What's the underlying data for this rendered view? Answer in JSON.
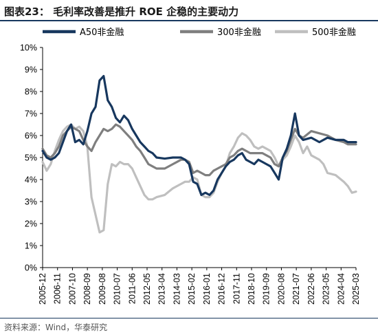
{
  "page": {
    "title": "图表23：  毛利率改善是推升 ROE 企稳的主要动力",
    "source": "资料来源：Wind，华泰研究"
  },
  "chart_data": {
    "type": "line",
    "title": "",
    "xlabel": "",
    "ylabel": "",
    "ylim": [
      0,
      10
    ],
    "y_tick_labels": [
      "0%",
      "1%",
      "2%",
      "3%",
      "4%",
      "5%",
      "6%",
      "7%",
      "8%",
      "9%",
      "10%"
    ],
    "x_tick_labels": [
      "2005-12",
      "2006-11",
      "2007-10",
      "2008-09",
      "2009-08",
      "2010-07",
      "2011-06",
      "2012-05",
      "2013-04",
      "2014-03",
      "2015-02",
      "2016-01",
      "2016-12",
      "2017-11",
      "2018-10",
      "2019-09",
      "2020-08",
      "2021-07",
      "2022-06",
      "2023-05",
      "2024-04",
      "2025-03"
    ],
    "x_axis_start": "2005-12",
    "x_axis_end": "2025-03",
    "grid": false,
    "legend_position": "top",
    "series": [
      {
        "name": "A50非金融",
        "color": "#17375e",
        "data": [
          [
            "2005-12",
            5.3
          ],
          [
            "2006-03",
            5.0
          ],
          [
            "2006-06",
            4.9
          ],
          [
            "2006-09",
            5.0
          ],
          [
            "2006-12",
            5.2
          ],
          [
            "2007-03",
            5.7
          ],
          [
            "2007-06",
            6.2
          ],
          [
            "2007-09",
            6.5
          ],
          [
            "2007-12",
            5.7
          ],
          [
            "2008-03",
            5.8
          ],
          [
            "2008-06",
            5.6
          ],
          [
            "2008-09",
            6.2
          ],
          [
            "2008-12",
            7.0
          ],
          [
            "2009-03",
            7.3
          ],
          [
            "2009-06",
            8.5
          ],
          [
            "2009-09",
            8.7
          ],
          [
            "2009-12",
            7.6
          ],
          [
            "2010-03",
            7.3
          ],
          [
            "2010-06",
            6.8
          ],
          [
            "2010-09",
            6.6
          ],
          [
            "2010-12",
            6.9
          ],
          [
            "2011-03",
            6.7
          ],
          [
            "2011-06",
            6.3
          ],
          [
            "2011-09",
            6.0
          ],
          [
            "2011-12",
            5.7
          ],
          [
            "2012-03",
            5.5
          ],
          [
            "2012-06",
            5.3
          ],
          [
            "2012-09",
            5.2
          ],
          [
            "2012-12",
            5.0
          ],
          [
            "2013-06",
            4.95
          ],
          [
            "2013-12",
            5.0
          ],
          [
            "2014-06",
            5.0
          ],
          [
            "2014-09",
            4.9
          ],
          [
            "2014-12",
            4.7
          ],
          [
            "2015-03",
            3.9
          ],
          [
            "2015-06",
            3.8
          ],
          [
            "2015-09",
            3.3
          ],
          [
            "2015-12",
            3.4
          ],
          [
            "2016-03",
            3.3
          ],
          [
            "2016-06",
            3.5
          ],
          [
            "2016-09",
            4.0
          ],
          [
            "2016-12",
            4.3
          ],
          [
            "2017-03",
            4.6
          ],
          [
            "2017-06",
            4.8
          ],
          [
            "2017-09",
            4.9
          ],
          [
            "2017-12",
            5.1
          ],
          [
            "2018-03",
            5.2
          ],
          [
            "2018-06",
            4.9
          ],
          [
            "2018-09",
            4.8
          ],
          [
            "2018-12",
            4.7
          ],
          [
            "2019-03",
            4.9
          ],
          [
            "2019-06",
            4.8
          ],
          [
            "2019-09",
            4.7
          ],
          [
            "2019-12",
            4.6
          ],
          [
            "2020-03",
            4.3
          ],
          [
            "2020-06",
            4.0
          ],
          [
            "2020-09",
            5.0
          ],
          [
            "2020-12",
            5.4
          ],
          [
            "2021-03",
            6.0
          ],
          [
            "2021-06",
            7.0
          ],
          [
            "2021-09",
            6.0
          ],
          [
            "2021-12",
            5.8
          ],
          [
            "2022-06",
            5.9
          ],
          [
            "2022-12",
            5.7
          ],
          [
            "2023-06",
            5.9
          ],
          [
            "2023-12",
            5.8
          ],
          [
            "2024-06",
            5.8
          ],
          [
            "2024-09",
            5.7
          ],
          [
            "2025-03",
            5.7
          ]
        ]
      },
      {
        "name": "300非金融",
        "color": "#7f7f7f",
        "data": [
          [
            "2005-12",
            5.4
          ],
          [
            "2006-03",
            5.1
          ],
          [
            "2006-06",
            5.0
          ],
          [
            "2006-09",
            5.2
          ],
          [
            "2006-12",
            5.5
          ],
          [
            "2007-03",
            6.0
          ],
          [
            "2007-06",
            6.2
          ],
          [
            "2007-09",
            6.4
          ],
          [
            "2007-12",
            6.3
          ],
          [
            "2008-03",
            6.2
          ],
          [
            "2008-06",
            5.8
          ],
          [
            "2008-09",
            5.5
          ],
          [
            "2008-12",
            5.3
          ],
          [
            "2009-03",
            5.7
          ],
          [
            "2009-06",
            6.0
          ],
          [
            "2009-09",
            6.3
          ],
          [
            "2009-12",
            6.2
          ],
          [
            "2010-03",
            6.3
          ],
          [
            "2010-06",
            6.5
          ],
          [
            "2010-09",
            6.4
          ],
          [
            "2010-12",
            6.2
          ],
          [
            "2011-03",
            6.0
          ],
          [
            "2011-06",
            5.8
          ],
          [
            "2011-09",
            5.5
          ],
          [
            "2011-12",
            5.3
          ],
          [
            "2012-03",
            5.0
          ],
          [
            "2012-06",
            4.7
          ],
          [
            "2012-09",
            4.6
          ],
          [
            "2012-12",
            4.5
          ],
          [
            "2013-06",
            4.5
          ],
          [
            "2013-12",
            4.7
          ],
          [
            "2014-06",
            4.9
          ],
          [
            "2014-09",
            4.9
          ],
          [
            "2014-12",
            4.8
          ],
          [
            "2015-03",
            4.3
          ],
          [
            "2015-06",
            4.4
          ],
          [
            "2015-09",
            4.3
          ],
          [
            "2015-12",
            4.2
          ],
          [
            "2016-03",
            4.2
          ],
          [
            "2016-06",
            4.4
          ],
          [
            "2016-09",
            4.5
          ],
          [
            "2016-12",
            4.6
          ],
          [
            "2017-03",
            4.7
          ],
          [
            "2017-06",
            5.0
          ],
          [
            "2017-09",
            5.1
          ],
          [
            "2017-12",
            5.3
          ],
          [
            "2018-03",
            5.4
          ],
          [
            "2018-06",
            5.3
          ],
          [
            "2018-09",
            5.2
          ],
          [
            "2018-12",
            5.2
          ],
          [
            "2019-03",
            5.2
          ],
          [
            "2019-06",
            5.2
          ],
          [
            "2019-09",
            5.1
          ],
          [
            "2019-12",
            5.0
          ],
          [
            "2020-03",
            4.7
          ],
          [
            "2020-06",
            4.6
          ],
          [
            "2020-09",
            5.0
          ],
          [
            "2020-12",
            5.3
          ],
          [
            "2021-03",
            5.8
          ],
          [
            "2021-06",
            6.3
          ],
          [
            "2021-09",
            6.0
          ],
          [
            "2021-12",
            5.9
          ],
          [
            "2022-06",
            6.2
          ],
          [
            "2022-12",
            6.1
          ],
          [
            "2023-06",
            6.0
          ],
          [
            "2023-12",
            5.8
          ],
          [
            "2024-06",
            5.7
          ],
          [
            "2024-09",
            5.6
          ],
          [
            "2025-03",
            5.6
          ]
        ]
      },
      {
        "name": "500非金融",
        "color": "#bfbfbf",
        "data": [
          [
            "2005-12",
            4.8
          ],
          [
            "2006-03",
            4.4
          ],
          [
            "2006-06",
            4.7
          ],
          [
            "2006-09",
            5.3
          ],
          [
            "2006-12",
            5.8
          ],
          [
            "2007-03",
            6.2
          ],
          [
            "2007-06",
            6.4
          ],
          [
            "2007-09",
            6.5
          ],
          [
            "2007-12",
            6.3
          ],
          [
            "2008-03",
            6.4
          ],
          [
            "2008-06",
            6.2
          ],
          [
            "2008-09",
            5.5
          ],
          [
            "2008-12",
            3.2
          ],
          [
            "2009-03",
            2.4
          ],
          [
            "2009-06",
            1.6
          ],
          [
            "2009-09",
            1.7
          ],
          [
            "2009-12",
            3.8
          ],
          [
            "2010-03",
            4.7
          ],
          [
            "2010-06",
            4.6
          ],
          [
            "2010-09",
            4.8
          ],
          [
            "2010-12",
            4.7
          ],
          [
            "2011-03",
            4.7
          ],
          [
            "2011-06",
            4.5
          ],
          [
            "2011-09",
            4.1
          ],
          [
            "2011-12",
            3.7
          ],
          [
            "2012-03",
            3.3
          ],
          [
            "2012-06",
            3.1
          ],
          [
            "2012-09",
            3.1
          ],
          [
            "2012-12",
            3.2
          ],
          [
            "2013-06",
            3.3
          ],
          [
            "2013-12",
            3.6
          ],
          [
            "2014-06",
            3.8
          ],
          [
            "2014-09",
            3.9
          ],
          [
            "2014-12",
            3.9
          ],
          [
            "2015-03",
            4.1
          ],
          [
            "2015-06",
            4.0
          ],
          [
            "2015-09",
            3.3
          ],
          [
            "2015-12",
            3.2
          ],
          [
            "2016-03",
            3.2
          ],
          [
            "2016-06",
            3.4
          ],
          [
            "2016-09",
            3.9
          ],
          [
            "2016-12",
            4.3
          ],
          [
            "2017-03",
            4.6
          ],
          [
            "2017-06",
            5.2
          ],
          [
            "2017-09",
            5.5
          ],
          [
            "2017-12",
            5.9
          ],
          [
            "2018-03",
            6.1
          ],
          [
            "2018-06",
            6.0
          ],
          [
            "2018-09",
            5.8
          ],
          [
            "2018-12",
            5.5
          ],
          [
            "2019-03",
            5.4
          ],
          [
            "2019-06",
            5.5
          ],
          [
            "2019-09",
            5.4
          ],
          [
            "2019-12",
            5.3
          ],
          [
            "2020-03",
            5.0
          ],
          [
            "2020-06",
            4.6
          ],
          [
            "2020-09",
            4.9
          ],
          [
            "2020-12",
            5.1
          ],
          [
            "2021-03",
            5.5
          ],
          [
            "2021-06",
            6.0
          ],
          [
            "2021-09",
            5.7
          ],
          [
            "2021-12",
            5.2
          ],
          [
            "2022-03",
            5.5
          ],
          [
            "2022-06",
            5.1
          ],
          [
            "2022-12",
            4.9
          ],
          [
            "2023-03",
            4.7
          ],
          [
            "2023-06",
            4.3
          ],
          [
            "2023-12",
            4.2
          ],
          [
            "2024-06",
            3.9
          ],
          [
            "2024-09",
            3.7
          ],
          [
            "2024-12",
            3.4
          ],
          [
            "2025-03",
            3.45
          ]
        ]
      }
    ]
  }
}
